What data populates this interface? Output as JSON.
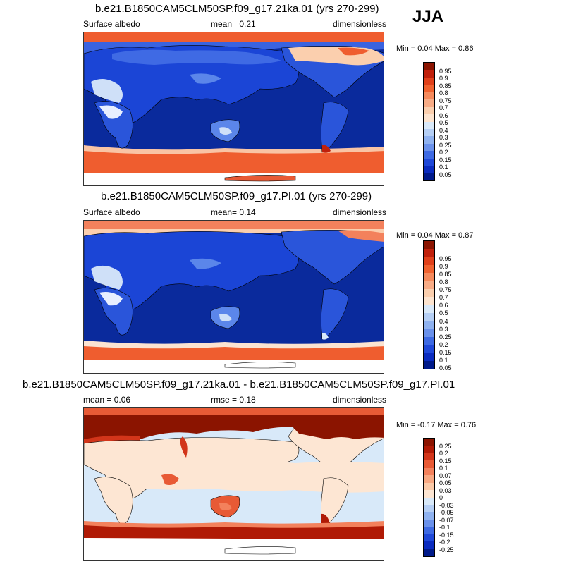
{
  "season": "JJA",
  "panels": [
    {
      "title": "b.e21.B1850CAM5CLM50SP.f09_g17.21ka.01 (yrs 270-299)",
      "left_label": "Surface albedo",
      "center_label": "mean=   0.21",
      "right_label": "dimensionless",
      "minmax": "Min =   0.04 Max =   0.86",
      "colorbar_ticks": [
        "0.95",
        "0.9",
        "0.85",
        "0.8",
        "0.75",
        "0.7",
        "0.6",
        "0.5",
        "0.4",
        "0.3",
        "0.25",
        "0.2",
        "0.15",
        "0.1",
        "0.05"
      ],
      "colorbar_colors": [
        "#8b1400",
        "#c0200b",
        "#e0401a",
        "#f0622f",
        "#f58a5c",
        "#f8ac86",
        "#fbcfae",
        "#fde4cf",
        "#d9e9f9",
        "#b5cff5",
        "#8fb2f0",
        "#6a91eb",
        "#3e6ae3",
        "#1f48d8",
        "#0a2bbf",
        "#001a8a"
      ]
    },
    {
      "title": "b.e21.B1850CAM5CLM50SP.f09_g17.PI.01 (yrs 270-299)",
      "left_label": "Surface albedo",
      "center_label": "mean=   0.14",
      "right_label": "dimensionless",
      "minmax": "Min =   0.04 Max =   0.87",
      "colorbar_ticks": [
        "0.95",
        "0.9",
        "0.85",
        "0.8",
        "0.75",
        "0.7",
        "0.6",
        "0.5",
        "0.4",
        "0.3",
        "0.25",
        "0.2",
        "0.15",
        "0.1",
        "0.05"
      ],
      "colorbar_colors": [
        "#8b1400",
        "#c0200b",
        "#e0401a",
        "#f0622f",
        "#f58a5c",
        "#f8ac86",
        "#fbcfae",
        "#fde4cf",
        "#d9e9f9",
        "#b5cff5",
        "#8fb2f0",
        "#6a91eb",
        "#3e6ae3",
        "#1f48d8",
        "#0a2bbf",
        "#001a8a"
      ]
    },
    {
      "title": "b.e21.B1850CAM5CLM50SP.f09_g17.21ka.01 - b.e21.B1850CAM5CLM50SP.f09_g17.PI.01",
      "left_label": "mean =    0.06",
      "center_label": "rmse =    0.18",
      "right_label": "dimensionless",
      "minmax": "Min =  -0.17 Max =   0.76",
      "colorbar_ticks": [
        "0.25",
        "0.2",
        "0.15",
        "0.1",
        "0.07",
        "0.05",
        "0.03",
        "0",
        "-0.03",
        "-0.05",
        "-0.07",
        "-0.1",
        "-0.15",
        "-0.2",
        "-0.25"
      ],
      "colorbar_colors": [
        "#8b1400",
        "#b01a05",
        "#d2351a",
        "#e85a35",
        "#f3815c",
        "#f8a882",
        "#fbcaa8",
        "#fde6d3",
        "#d8e9f9",
        "#b5cff5",
        "#8fb2f0",
        "#6a91eb",
        "#3e6ae3",
        "#1f48d8",
        "#0a2bbf",
        "#001a8a"
      ]
    }
  ]
}
